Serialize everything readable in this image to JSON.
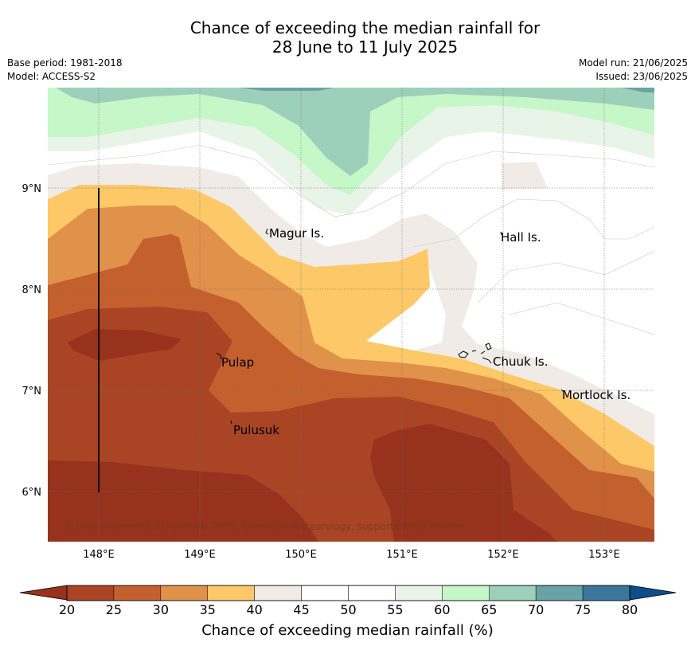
{
  "title": {
    "line1": "Chance of exceeding the median rainfall for",
    "line2": "28 June to 11 July 2025"
  },
  "meta": {
    "base_period": "Base period: 1981-2018",
    "model": "Model: ACCESS-S2",
    "model_run": "Model run: 21/06/2025",
    "issued": "Issued: 23/06/2025"
  },
  "map": {
    "lat_labels": [
      "9°N",
      "8°N",
      "7°N",
      "6°N"
    ],
    "lon_labels": [
      "148°E",
      "149°E",
      "150°E",
      "151°E",
      "152°E",
      "153°E"
    ],
    "places": [
      "Magur Is.",
      "Hall Is.",
      "Pulap",
      "Chuuk Is.",
      "Mortlock Is.",
      "Pulusuk"
    ],
    "copyright": "© Commonwealth of Australia 2025, Bureau of Meteorology, supported by COSPPac"
  },
  "colorbar": {
    "ticks": [
      "20",
      "25",
      "30",
      "35",
      "40",
      "45",
      "50",
      "55",
      "60",
      "65",
      "70",
      "75",
      "80"
    ],
    "label": "Chance of exceeding median rainfall (%)",
    "colors": [
      "#a94424",
      "#c4602e",
      "#e0914a",
      "#fdc968",
      "#f0ebe6",
      "#ffffff",
      "#ffffff",
      "#e9f4e8",
      "#c6f7c9",
      "#9dd0ba",
      "#6aa3a6",
      "#3b779a"
    ],
    "under_color": "#96321d",
    "over_color": "#0d4d8a"
  }
}
